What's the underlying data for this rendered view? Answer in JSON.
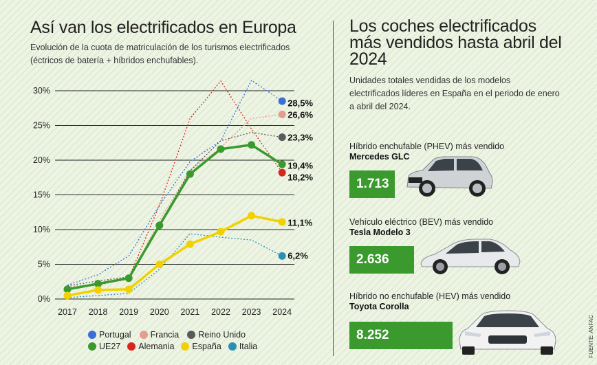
{
  "left": {
    "title": "Así van los electrificados en Europa",
    "subtitle": "Evolución de la cuota de matriculación de los turismos electrificados (éctricos de batería + híbridos enchufables)."
  },
  "right": {
    "title": "Los coches electrificados más vendidos hasta abril del 2024",
    "subtitle": "Unidades totales vendidas de los modelos electrificados líderes en España en el periodo de enero a abril del 2024.",
    "cards": [
      {
        "label": "Híbrido enchufable (PHEV) más vendido",
        "model": "Mercedes GLC",
        "value": "1.713",
        "car_color": "#cfd3d6"
      },
      {
        "label": "Vehículo eléctrico (BEV) más vendido",
        "model": "Tesla Modelo 3",
        "value": "2.636",
        "car_color": "#e8e9ea"
      },
      {
        "label": "Híbrido no enchufable (HEV) más vendido",
        "model": "Toyota Corolla",
        "value": "8.252",
        "car_color": "#f2f2f2"
      }
    ],
    "value_color": "#3a9a2e"
  },
  "source": "FUENTE: ANFAC",
  "chart_data": {
    "type": "line",
    "x": [
      "2017",
      "2018",
      "2019",
      "2020",
      "2021",
      "2022",
      "2023",
      "2024"
    ],
    "y_ticks": [
      "0%",
      "5%",
      "10%",
      "15%",
      "20%",
      "25%",
      "30%"
    ],
    "ylim": [
      0,
      32
    ],
    "grid": true,
    "legend": "bottom",
    "series": [
      {
        "name": "Portugal",
        "color": "#3a6fd8",
        "style": "dotted",
        "values": [
          2.0,
          3.5,
          6.2,
          13.5,
          19.8,
          22.8,
          31.5,
          28.5
        ],
        "end_label": "28,5%",
        "bold": false
      },
      {
        "name": "Francia",
        "color": "#e39e90",
        "style": "dotted",
        "values": [
          1.8,
          2.1,
          2.8,
          11.3,
          18.5,
          21.8,
          26.0,
          26.6
        ],
        "end_label": "26,6%",
        "bold": false
      },
      {
        "name": "Reino Unido",
        "color": "#5a5a5a",
        "style": "dotted",
        "values": [
          1.9,
          2.6,
          3.2,
          10.7,
          18.5,
          22.8,
          24.0,
          23.3
        ],
        "end_label": "23,3%",
        "bold": false
      },
      {
        "name": "UE27",
        "color": "#3a9a2e",
        "style": "solid",
        "values": [
          1.4,
          2.2,
          3.0,
          10.6,
          18.0,
          21.6,
          22.2,
          19.4
        ],
        "end_label": "19,4%",
        "bold": true
      },
      {
        "name": "Alemania",
        "color": "#d7261e",
        "style": "dotted",
        "values": [
          1.6,
          2.0,
          3.0,
          13.5,
          26.0,
          31.4,
          24.5,
          18.2
        ],
        "end_label": "18,2%",
        "bold": false
      },
      {
        "name": "España",
        "color": "#f2d100",
        "style": "solid",
        "values": [
          0.5,
          1.3,
          1.4,
          5.0,
          7.9,
          9.7,
          12.0,
          11.1
        ],
        "end_label": "11,1%",
        "bold": true
      },
      {
        "name": "Italia",
        "color": "#2a8fb5",
        "style": "dotted",
        "values": [
          0.2,
          0.5,
          0.8,
          4.3,
          9.4,
          8.9,
          8.5,
          6.2
        ],
        "end_label": "6,2%",
        "bold": false
      }
    ]
  }
}
